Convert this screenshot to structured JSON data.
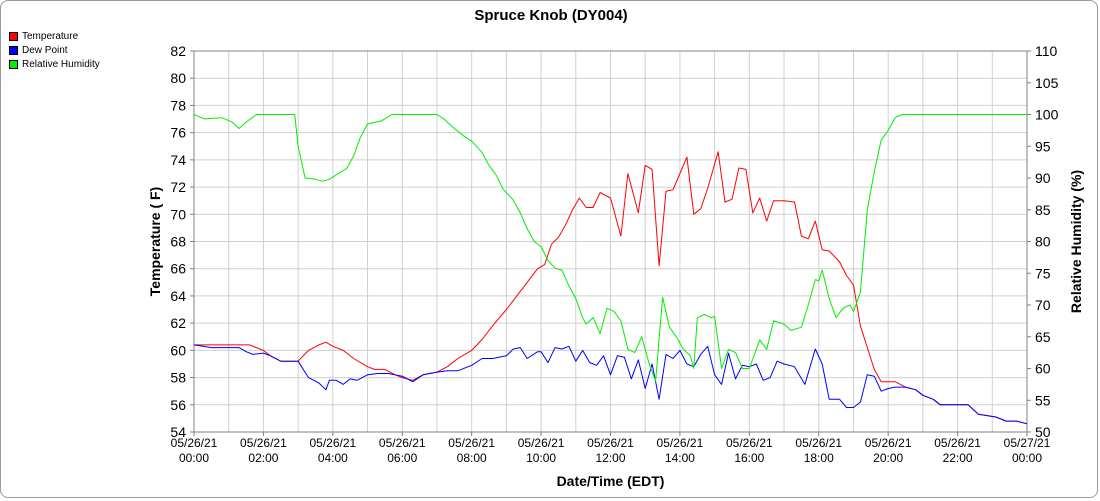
{
  "chart_data": {
    "type": "line",
    "title": "Spruce Knob (DY004)",
    "xlabel": "Date/Time (EDT)",
    "ylabel": "Temperature ( F)",
    "y2label": "Relative Humidity (%)",
    "ylim": [
      54,
      82
    ],
    "y2lim": [
      50,
      110
    ],
    "yticks": [
      54,
      56,
      58,
      60,
      62,
      64,
      66,
      68,
      70,
      72,
      74,
      76,
      78,
      80,
      82
    ],
    "y2ticks": [
      50,
      55,
      60,
      65,
      70,
      75,
      80,
      85,
      90,
      95,
      100,
      105,
      110
    ],
    "xlim": [
      0,
      24
    ],
    "xticks": [
      {
        "h": 0,
        "date": "05/26/21",
        "time": "00:00"
      },
      {
        "h": 2,
        "date": "05/26/21",
        "time": "02:00"
      },
      {
        "h": 4,
        "date": "05/26/21",
        "time": "04:00"
      },
      {
        "h": 6,
        "date": "05/26/21",
        "time": "06:00"
      },
      {
        "h": 8,
        "date": "05/26/21",
        "time": "08:00"
      },
      {
        "h": 10,
        "date": "05/26/21",
        "time": "10:00"
      },
      {
        "h": 12,
        "date": "05/26/21",
        "time": "12:00"
      },
      {
        "h": 14,
        "date": "05/26/21",
        "time": "14:00"
      },
      {
        "h": 16,
        "date": "05/26/21",
        "time": "16:00"
      },
      {
        "h": 18,
        "date": "05/26/21",
        "time": "18:00"
      },
      {
        "h": 20,
        "date": "05/26/21",
        "time": "20:00"
      },
      {
        "h": 22,
        "date": "05/26/21",
        "time": "22:00"
      },
      {
        "h": 24,
        "date": "05/27/21",
        "time": "00:00"
      }
    ],
    "grid": true,
    "legend_position": "top-left",
    "series": [
      {
        "name": "Temperature",
        "color": "#ff0000",
        "axis": "left",
        "points": [
          [
            0,
            60.4
          ],
          [
            1,
            60.4
          ],
          [
            1.6,
            60.4
          ],
          [
            2,
            60
          ],
          [
            2.2,
            59.6
          ],
          [
            2.5,
            59.2
          ],
          [
            2.8,
            59.2
          ],
          [
            3,
            59.2
          ],
          [
            3.3,
            60
          ],
          [
            3.6,
            60.4
          ],
          [
            3.8,
            60.6
          ],
          [
            4,
            60.3
          ],
          [
            4.3,
            60
          ],
          [
            4.6,
            59.4
          ],
          [
            5,
            58.8
          ],
          [
            5.2,
            58.6
          ],
          [
            5.5,
            58.6
          ],
          [
            5.8,
            58.2
          ],
          [
            6,
            58
          ],
          [
            6.3,
            57.8
          ],
          [
            6.6,
            58.2
          ],
          [
            7,
            58.4
          ],
          [
            7.3,
            58.8
          ],
          [
            7.6,
            59.4
          ],
          [
            8,
            60
          ],
          [
            8.3,
            60.8
          ],
          [
            8.6,
            61.8
          ],
          [
            9,
            63
          ],
          [
            9.3,
            64
          ],
          [
            9.6,
            65
          ],
          [
            9.9,
            66
          ],
          [
            10.1,
            66.3
          ],
          [
            10.3,
            67.8
          ],
          [
            10.5,
            68.3
          ],
          [
            10.7,
            69.2
          ],
          [
            10.9,
            70.3
          ],
          [
            11.1,
            71.2
          ],
          [
            11.3,
            70.5
          ],
          [
            11.5,
            70.5
          ],
          [
            11.7,
            71.6
          ],
          [
            12,
            71.2
          ],
          [
            12.3,
            68.4
          ],
          [
            12.5,
            73
          ],
          [
            12.8,
            70.1
          ],
          [
            13,
            73.6
          ],
          [
            13.2,
            73.3
          ],
          [
            13.4,
            66.2
          ],
          [
            13.6,
            71.7
          ],
          [
            13.8,
            71.8
          ],
          [
            14,
            73
          ],
          [
            14.2,
            74.2
          ],
          [
            14.4,
            70
          ],
          [
            14.6,
            70.4
          ],
          [
            14.8,
            71.9
          ],
          [
            15.1,
            74.6
          ],
          [
            15.3,
            70.9
          ],
          [
            15.5,
            71.1
          ],
          [
            15.7,
            73.4
          ],
          [
            15.9,
            73.3
          ],
          [
            16.1,
            70.1
          ],
          [
            16.3,
            71.2
          ],
          [
            16.5,
            69.5
          ],
          [
            16.7,
            71
          ],
          [
            17,
            71
          ],
          [
            17.3,
            70.9
          ],
          [
            17.5,
            68.4
          ],
          [
            17.7,
            68.2
          ],
          [
            17.9,
            69.5
          ],
          [
            18.1,
            67.4
          ],
          [
            18.3,
            67.3
          ],
          [
            18.6,
            66.5
          ],
          [
            18.8,
            65.5
          ],
          [
            19,
            64.8
          ],
          [
            19.2,
            61.8
          ],
          [
            19.4,
            60.2
          ],
          [
            19.6,
            58.6
          ],
          [
            19.8,
            57.7
          ],
          [
            20.2,
            57.7
          ],
          [
            20.5,
            57.3
          ],
          [
            20.8,
            57.1
          ],
          [
            21,
            56.7
          ],
          [
            21.3,
            56.4
          ],
          [
            21.5,
            56
          ],
          [
            22.3,
            56
          ],
          [
            22.6,
            55.3
          ],
          [
            23.1,
            55.1
          ],
          [
            23.4,
            54.8
          ],
          [
            23.7,
            54.8
          ],
          [
            24,
            54.6
          ]
        ]
      },
      {
        "name": "Dew Point",
        "color": "#0000ff",
        "axis": "left",
        "points": [
          [
            0,
            60.4
          ],
          [
            0.5,
            60.2
          ],
          [
            1,
            60.2
          ],
          [
            1.3,
            60.2
          ],
          [
            1.5,
            59.9
          ],
          [
            1.7,
            59.7
          ],
          [
            2,
            59.8
          ],
          [
            2.2,
            59.6
          ],
          [
            2.5,
            59.2
          ],
          [
            3,
            59.2
          ],
          [
            3.3,
            58
          ],
          [
            3.6,
            57.6
          ],
          [
            3.8,
            57.1
          ],
          [
            3.9,
            57.8
          ],
          [
            4.1,
            57.8
          ],
          [
            4.3,
            57.5
          ],
          [
            4.5,
            57.9
          ],
          [
            4.7,
            57.8
          ],
          [
            5,
            58.2
          ],
          [
            5.3,
            58.3
          ],
          [
            5.6,
            58.3
          ],
          [
            6,
            58.1
          ],
          [
            6.3,
            57.7
          ],
          [
            6.6,
            58.2
          ],
          [
            7,
            58.4
          ],
          [
            7.3,
            58.5
          ],
          [
            7.6,
            58.5
          ],
          [
            8,
            58.9
          ],
          [
            8.3,
            59.4
          ],
          [
            8.6,
            59.4
          ],
          [
            9,
            59.6
          ],
          [
            9.2,
            60.1
          ],
          [
            9.4,
            60.2
          ],
          [
            9.6,
            59.4
          ],
          [
            9.9,
            59.9
          ],
          [
            10,
            59.9
          ],
          [
            10.2,
            59.1
          ],
          [
            10.4,
            60.2
          ],
          [
            10.6,
            60.1
          ],
          [
            10.8,
            60.3
          ],
          [
            11,
            59.2
          ],
          [
            11.2,
            60
          ],
          [
            11.4,
            59.1
          ],
          [
            11.6,
            58.9
          ],
          [
            11.8,
            59.6
          ],
          [
            12,
            58.2
          ],
          [
            12.2,
            59.6
          ],
          [
            12.4,
            59.5
          ],
          [
            12.6,
            57.9
          ],
          [
            12.8,
            59.3
          ],
          [
            13,
            57.2
          ],
          [
            13.2,
            59
          ],
          [
            13.4,
            56.4
          ],
          [
            13.6,
            59.7
          ],
          [
            13.8,
            59.4
          ],
          [
            14,
            60
          ],
          [
            14.2,
            59
          ],
          [
            14.4,
            58.8
          ],
          [
            14.6,
            59.7
          ],
          [
            14.8,
            60.3
          ],
          [
            15,
            58.2
          ],
          [
            15.2,
            57.5
          ],
          [
            15.4,
            59.8
          ],
          [
            15.6,
            57.9
          ],
          [
            15.8,
            58.9
          ],
          [
            16,
            58.8
          ],
          [
            16.2,
            59
          ],
          [
            16.4,
            57.8
          ],
          [
            16.6,
            58
          ],
          [
            16.8,
            59.2
          ],
          [
            17,
            59
          ],
          [
            17.3,
            58.8
          ],
          [
            17.6,
            57.5
          ],
          [
            17.9,
            60.1
          ],
          [
            18.1,
            59
          ],
          [
            18.3,
            56.4
          ],
          [
            18.6,
            56.4
          ],
          [
            18.8,
            55.8
          ],
          [
            19,
            55.8
          ],
          [
            19.2,
            56.2
          ],
          [
            19.4,
            58.2
          ],
          [
            19.6,
            58.1
          ],
          [
            19.8,
            57
          ],
          [
            20,
            57.2
          ],
          [
            20.2,
            57.3
          ],
          [
            20.5,
            57.3
          ],
          [
            20.8,
            57.1
          ],
          [
            21,
            56.7
          ],
          [
            21.3,
            56.4
          ],
          [
            21.5,
            56
          ],
          [
            22.3,
            56
          ],
          [
            22.6,
            55.3
          ],
          [
            23.1,
            55.1
          ],
          [
            23.4,
            54.8
          ],
          [
            23.7,
            54.8
          ],
          [
            24,
            54.6
          ]
        ]
      },
      {
        "name": "Relative Humidity",
        "color": "#00ee00",
        "axis": "right",
        "points": [
          [
            0,
            100
          ],
          [
            0.3,
            99.3
          ],
          [
            0.8,
            99.5
          ],
          [
            1.1,
            98.8
          ],
          [
            1.3,
            97.8
          ],
          [
            1.5,
            98.8
          ],
          [
            1.8,
            100
          ],
          [
            2,
            100
          ],
          [
            2.5,
            100
          ],
          [
            2.9,
            100
          ],
          [
            3,
            95
          ],
          [
            3.2,
            90
          ],
          [
            3.5,
            89.8
          ],
          [
            3.7,
            89.5
          ],
          [
            3.9,
            89.8
          ],
          [
            4.1,
            90.5
          ],
          [
            4.4,
            91.5
          ],
          [
            4.6,
            93.5
          ],
          [
            4.8,
            96.5
          ],
          [
            5,
            98.5
          ],
          [
            5.4,
            99
          ],
          [
            5.7,
            100
          ],
          [
            6,
            100
          ],
          [
            6.5,
            100
          ],
          [
            7,
            100
          ],
          [
            7.2,
            99.3
          ],
          [
            7.5,
            97.8
          ],
          [
            7.8,
            96.5
          ],
          [
            8,
            95.8
          ],
          [
            8.3,
            94
          ],
          [
            8.5,
            92
          ],
          [
            8.7,
            90.5
          ],
          [
            8.9,
            88.3
          ],
          [
            9.2,
            86.5
          ],
          [
            9.4,
            84.5
          ],
          [
            9.6,
            82
          ],
          [
            9.8,
            80
          ],
          [
            10,
            79.2
          ],
          [
            10.2,
            77
          ],
          [
            10.4,
            75.8
          ],
          [
            10.6,
            75.5
          ],
          [
            10.8,
            73
          ],
          [
            11,
            71
          ],
          [
            11.2,
            68
          ],
          [
            11.3,
            67
          ],
          [
            11.5,
            68
          ],
          [
            11.7,
            65.5
          ],
          [
            11.9,
            69.5
          ],
          [
            12.1,
            69
          ],
          [
            12.3,
            67.5
          ],
          [
            12.5,
            63
          ],
          [
            12.7,
            62.5
          ],
          [
            12.9,
            65
          ],
          [
            13.1,
            61
          ],
          [
            13.3,
            58
          ],
          [
            13.5,
            71.2
          ],
          [
            13.7,
            66.5
          ],
          [
            13.9,
            65
          ],
          [
            14.1,
            63
          ],
          [
            14.3,
            62
          ],
          [
            14.4,
            60
          ],
          [
            14.5,
            68
          ],
          [
            14.7,
            68.5
          ],
          [
            14.9,
            68
          ],
          [
            15,
            68.2
          ],
          [
            15.2,
            60
          ],
          [
            15.4,
            63
          ],
          [
            15.6,
            62.5
          ],
          [
            15.8,
            60
          ],
          [
            16,
            60
          ],
          [
            16.3,
            64.5
          ],
          [
            16.5,
            63
          ],
          [
            16.7,
            67.5
          ],
          [
            17,
            67
          ],
          [
            17.2,
            66
          ],
          [
            17.5,
            66.5
          ],
          [
            17.7,
            70
          ],
          [
            17.9,
            74
          ],
          [
            18,
            73.8
          ],
          [
            18.1,
            75.5
          ],
          [
            18.3,
            71
          ],
          [
            18.5,
            68
          ],
          [
            18.7,
            69.5
          ],
          [
            18.9,
            70
          ],
          [
            19,
            69
          ],
          [
            19.2,
            72
          ],
          [
            19.4,
            85
          ],
          [
            19.6,
            91
          ],
          [
            19.8,
            96
          ],
          [
            20,
            97.5
          ],
          [
            20.2,
            99.5
          ],
          [
            20.4,
            100
          ],
          [
            22,
            100
          ],
          [
            24,
            100
          ]
        ]
      }
    ]
  }
}
